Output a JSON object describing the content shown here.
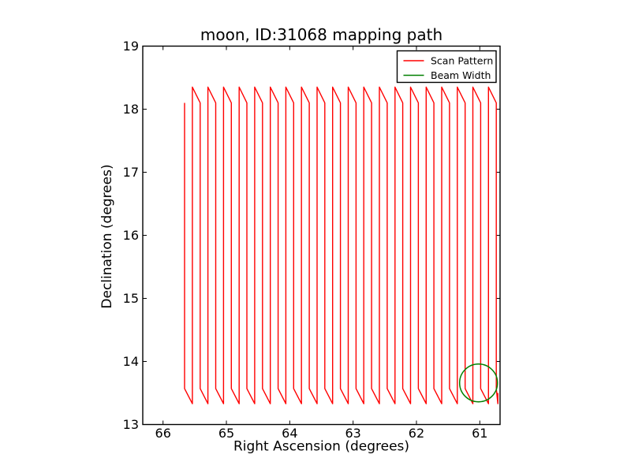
{
  "figure": {
    "background_color": "#ffffff",
    "frame_color": "#000000",
    "text_color": "#000000"
  },
  "chart_data": {
    "type": "line",
    "title": "moon, ID:31068 mapping path",
    "xlabel": "Right Ascension (degrees)",
    "ylabel": "Declination (degrees)",
    "xlim": [
      66.32,
      60.68
    ],
    "ylim": [
      13,
      19
    ],
    "x_axis_inverted": true,
    "grid": false,
    "x_ticks": [
      "66",
      "65",
      "64",
      "63",
      "62",
      "61"
    ],
    "x_tick_values": [
      66,
      65,
      64,
      63,
      62,
      61
    ],
    "y_ticks": [
      "13",
      "14",
      "15",
      "16",
      "17",
      "18",
      "19"
    ],
    "y_tick_values": [
      13,
      14,
      15,
      16,
      17,
      18,
      19
    ],
    "legend": {
      "position": "upper right",
      "entries": [
        {
          "label": "Scan Pattern",
          "color": "#ff0000"
        },
        {
          "label": "Beam Width",
          "color": "#008000"
        }
      ]
    },
    "series": [
      {
        "name": "Scan Pattern",
        "color": "#ff0000",
        "shape": "serpentine_raster_scan",
        "scan": {
          "ra_start": 65.66,
          "ra_step": 0.123,
          "n_strokes": 41,
          "descent_start_dec": 18.1,
          "descent_end_dec": 13.57,
          "ascent_start_dec": 13.33,
          "ascent_end_dec": 18.35,
          "final_vertex_step_fraction": 0.2,
          "final_stub_dec": 13.5
        }
      },
      {
        "name": "Beam Width",
        "color": "#008000",
        "shape": "circle",
        "circle": {
          "center_ra": 61.02,
          "center_dec": 13.66,
          "radius_deg": 0.3
        }
      }
    ]
  }
}
